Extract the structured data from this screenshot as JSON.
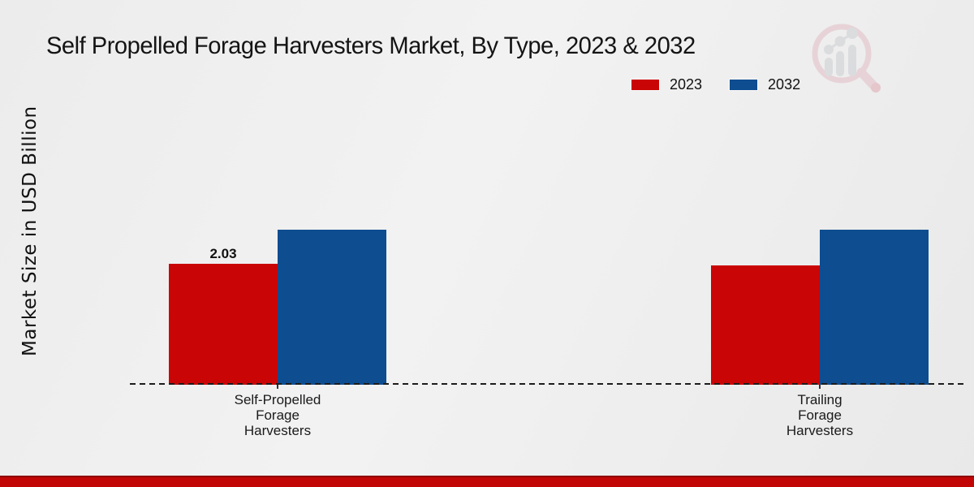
{
  "title": "Self Propelled Forage Harvesters Market, By Type, 2023 & 2032",
  "y_axis_label": "Market Size in USD Billion",
  "legend": {
    "items": [
      {
        "label": "2023",
        "color": "#c90505"
      },
      {
        "label": "2032",
        "color": "#0e4d90"
      }
    ],
    "position": "top-right"
  },
  "watermark_icon": "market-research-magnifier-logo",
  "footer_bar_color": "#c20505",
  "chart_data": {
    "type": "bar",
    "title": "Self Propelled Forage Harvesters Market, By Type, 2023 & 2032",
    "xlabel": "",
    "ylabel": "Market Size in USD Billion",
    "categories": [
      "Self-Propelled Forage Harvesters",
      "Trailing Forage Harvesters"
    ],
    "series": [
      {
        "name": "2023",
        "color": "#c90505",
        "values": [
          2.03,
          2.0
        ]
      },
      {
        "name": "2032",
        "color": "#0e4d90",
        "values": [
          2.6,
          2.6
        ]
      }
    ],
    "value_labels": [
      {
        "series_index": 0,
        "category_index": 0,
        "text": "2.03"
      }
    ],
    "ylim": [
      0,
      3.2
    ],
    "grid": false,
    "y_ticks_visible": false,
    "baseline_style": "dashed",
    "legend_position": "top-right"
  }
}
